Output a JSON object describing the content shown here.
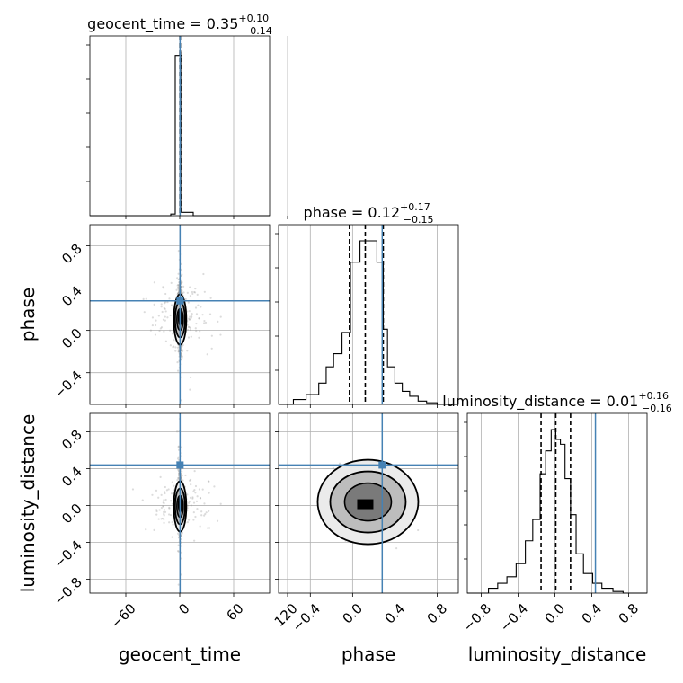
{
  "chart_data": {
    "type": "corner",
    "parameters": [
      {
        "key": "geocent_time",
        "axis_label": "geocent_time",
        "title": {
          "text": "geocent_time = 0.35",
          "plus": "+0.10",
          "minus": "−0.14"
        },
        "range": [
          -100,
          100
        ],
        "ticks": [
          -60,
          0,
          60,
          120
        ],
        "tick_labels": [
          "−60",
          "0",
          "60",
          "120"
        ],
        "truth": 0.35,
        "quantiles": [
          0.21,
          0.35,
          0.45
        ],
        "histogram": {
          "edges": [
            -100,
            -10,
            -5,
            0,
            1,
            2,
            15,
            100
          ],
          "counts": [
            0,
            0.01,
            0.98,
            1.0,
            0.98,
            0.02,
            0
          ]
        }
      },
      {
        "key": "phase",
        "axis_label": "phase",
        "title": {
          "text": "phase = 0.12",
          "plus": "+0.17",
          "minus": "−0.15"
        },
        "range": [
          -0.7,
          1.0
        ],
        "ticks": [
          -0.4,
          0.0,
          0.4,
          0.8
        ],
        "tick_labels": [
          "−0.4",
          "0.0",
          "0.4",
          "0.8"
        ],
        "truth": 0.28,
        "quantiles": [
          -0.03,
          0.12,
          0.29
        ],
        "histogram": {
          "edges": [
            -0.7,
            -0.56,
            -0.44,
            -0.32,
            -0.25,
            -0.18,
            -0.1,
            -0.02,
            0.0,
            0.07,
            0.15,
            0.23,
            0.29,
            0.33,
            0.4,
            0.47,
            0.54,
            0.62,
            0.7,
            0.8,
            1.0
          ],
          "counts": [
            0,
            0.03,
            0.06,
            0.13,
            0.23,
            0.31,
            0.44,
            0.87,
            0.87,
            1.0,
            1.0,
            0.87,
            0.46,
            0.23,
            0.13,
            0.08,
            0.05,
            0.02,
            0.01,
            0
          ]
        },
        "samples_sd": 0.14
      },
      {
        "key": "luminosity_distance",
        "axis_label": "luminosity_distance",
        "title": {
          "text": "luminosity_distance = 0.01",
          "plus": "+0.16",
          "minus": "−0.16"
        },
        "range": [
          -0.95,
          1.0
        ],
        "ticks": [
          -0.8,
          -0.4,
          0.0,
          0.4,
          0.8
        ],
        "tick_labels": [
          "−0.8",
          "−0.4",
          "0.0",
          "0.4",
          "0.8"
        ],
        "truth": 0.44,
        "quantiles": [
          -0.15,
          0.01,
          0.17
        ],
        "histogram": {
          "edges": [
            -0.95,
            -0.72,
            -0.62,
            -0.52,
            -0.42,
            -0.32,
            -0.24,
            -0.16,
            -0.1,
            -0.04,
            0.01,
            0.06,
            0.11,
            0.17,
            0.23,
            0.31,
            0.41,
            0.51,
            0.63,
            0.74,
            1.0
          ],
          "counts": [
            0,
            0.03,
            0.06,
            0.1,
            0.18,
            0.32,
            0.45,
            0.73,
            0.87,
            1.0,
            0.94,
            0.91,
            0.7,
            0.48,
            0.24,
            0.12,
            0.06,
            0.03,
            0.01,
            0
          ]
        },
        "samples_sd": 0.14
      }
    ],
    "samples_per_panel": 1400,
    "colors": {
      "truth": "#4682b4",
      "grid": "#b0b0b0",
      "samples": "#9a9a9a",
      "contour_fill_light": "#ebebeb",
      "contour_fill_mid": "#bdbdbd",
      "contour_fill_dark": "#7a7a7a",
      "density_peak": "#000000"
    },
    "grid": true,
    "legend": "none"
  }
}
